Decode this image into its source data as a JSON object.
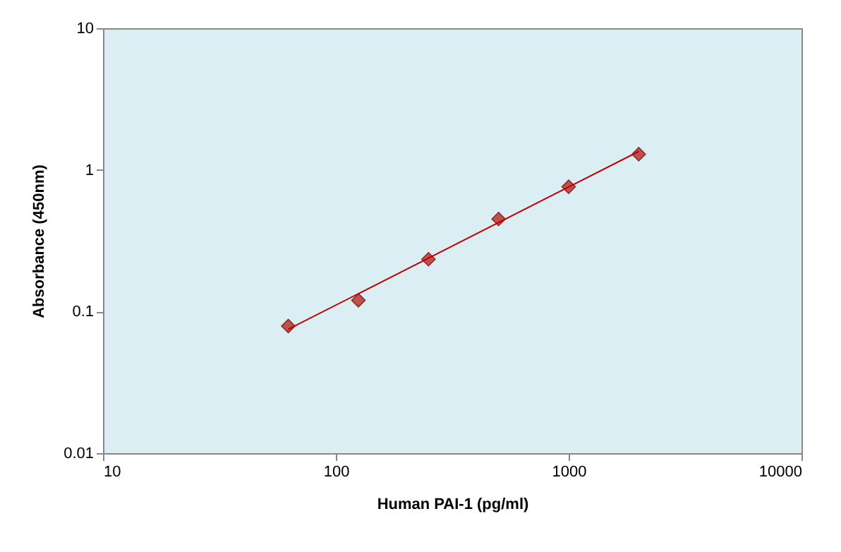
{
  "chart_data": {
    "type": "scatter",
    "xlabel": "Human PAI-1 (pg/ml)",
    "ylabel": "Absorbance (450nm)",
    "log": "xy",
    "grid": false,
    "xlim": [
      10,
      10000
    ],
    "xticks": [
      10,
      100,
      1000,
      10000
    ],
    "ylim": [
      0.01,
      10
    ],
    "yticks": [
      0.01,
      0.1,
      1,
      10
    ],
    "series": [
      {
        "marker": "diamond",
        "color": "#c0504d",
        "x": [
          62.5,
          125,
          250,
          500,
          1000,
          2000
        ],
        "values": [
          0.079,
          0.12,
          0.234,
          0.45,
          0.76,
          1.29
        ]
      },
      {
        "type": "line",
        "marker": "none",
        "line_style": "solid",
        "color": "#c00000",
        "x": [
          62.5,
          2000
        ],
        "values": [
          0.075,
          1.35
        ]
      }
    ]
  }
}
